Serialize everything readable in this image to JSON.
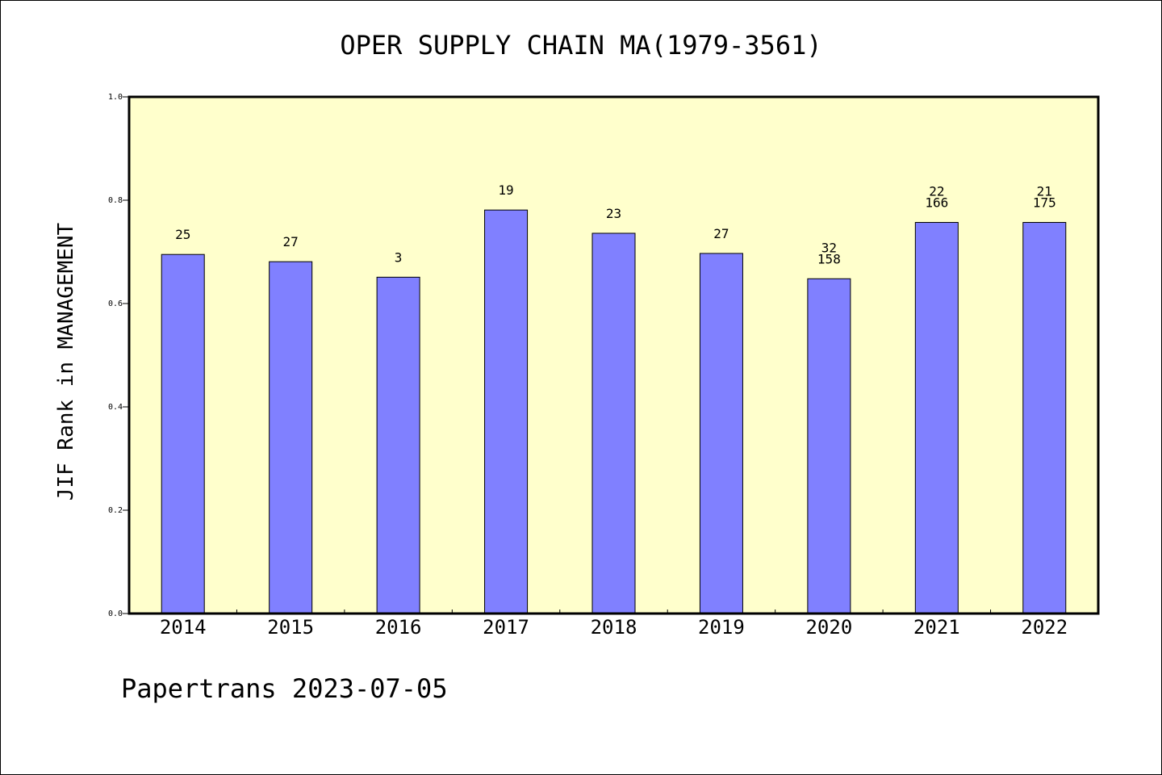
{
  "chart_data": {
    "type": "bar",
    "title": "OPER SUPPLY CHAIN MA(1979-3561)",
    "ylabel": "JIF Rank in MANAGEMENT",
    "xlabel": "",
    "ylim": [
      0,
      1.0
    ],
    "yticks": [
      "0.0",
      "0.2",
      "0.4",
      "0.6",
      "0.8",
      "1.0"
    ],
    "categories": [
      "2014",
      "2015",
      "2016",
      "2017",
      "2018",
      "2019",
      "2020",
      "2021",
      "2022"
    ],
    "values": [
      0.695,
      0.681,
      0.651,
      0.781,
      0.736,
      0.697,
      0.648,
      0.757,
      0.757
    ],
    "labels": [
      [
        "25"
      ],
      [
        "27"
      ],
      [
        "3"
      ],
      [
        "19"
      ],
      [
        "23"
      ],
      [
        "27"
      ],
      [
        "32",
        "158"
      ],
      [
        "22",
        "166"
      ],
      [
        "21",
        "175"
      ]
    ],
    "grid": false,
    "colors": {
      "plot_background": "#ffffcc",
      "bar": "#8080ff",
      "bar_edge": "#000000"
    }
  },
  "footer": "Papertrans 2023-07-05"
}
